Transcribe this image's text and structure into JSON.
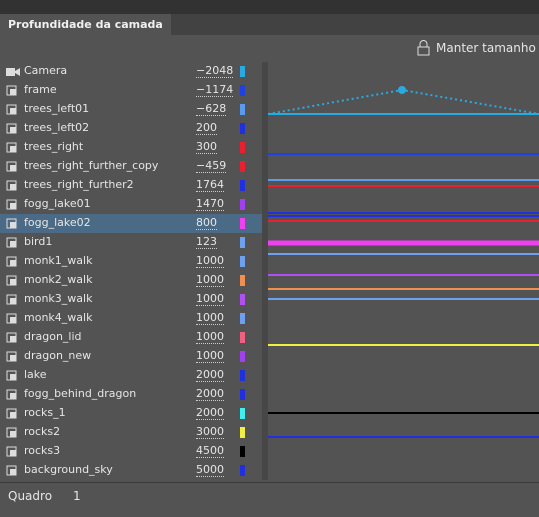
{
  "panel": {
    "tab": "Profundidade da camada",
    "button": "Manter tamanho",
    "layers": [
      {
        "name": "Camera",
        "depth": "−2048",
        "color": "#29abe2"
      },
      {
        "name": "frame",
        "depth": "−1174",
        "color": "#2040e0"
      },
      {
        "name": "trees_left01",
        "depth": "−628",
        "color": "#5b9bef"
      },
      {
        "name": "trees_left02",
        "depth": "200",
        "color": "#2030e0"
      },
      {
        "name": "trees_right",
        "depth": "300",
        "color": "#e82030"
      },
      {
        "name": "trees_right_further_copy",
        "depth": "−459",
        "color": "#e82030"
      },
      {
        "name": "trees_right_further2",
        "depth": "1764",
        "color": "#2030e0"
      },
      {
        "name": "fogg_lake01",
        "depth": "1470",
        "color": "#a040f0"
      },
      {
        "name": "fogg_lake02",
        "depth": "800",
        "color": "#f040f0"
      },
      {
        "name": "bird1",
        "depth": "123",
        "color": "#6fa0f0"
      },
      {
        "name": "monk1_walk",
        "depth": "1000",
        "color": "#6fa0f0"
      },
      {
        "name": "monk2_walk",
        "depth": "1000",
        "color": "#f09050"
      },
      {
        "name": "monk3_walk",
        "depth": "1000",
        "color": "#b050f0"
      },
      {
        "name": "monk4_walk",
        "depth": "1000",
        "color": "#6fa0f0"
      },
      {
        "name": "dragon_lid",
        "depth": "1000",
        "color": "#f06080"
      },
      {
        "name": "dragon_new",
        "depth": "1000",
        "color": "#a040f0"
      },
      {
        "name": "lake",
        "depth": "2000",
        "color": "#2030e0"
      },
      {
        "name": "fogg_behind_dragon",
        "depth": "2000",
        "color": "#2030e0"
      },
      {
        "name": "rocks_1",
        "depth": "2000",
        "color": "#40f0f0"
      },
      {
        "name": "rocks2",
        "depth": "3000",
        "color": "#f0f040"
      },
      {
        "name": "rocks3",
        "depth": "4500",
        "color": "#000000"
      },
      {
        "name": "background_sky",
        "depth": "5000",
        "color": "#2030e0"
      }
    ],
    "selected": 8,
    "footer": {
      "label": "Quadro",
      "value": "1"
    }
  }
}
